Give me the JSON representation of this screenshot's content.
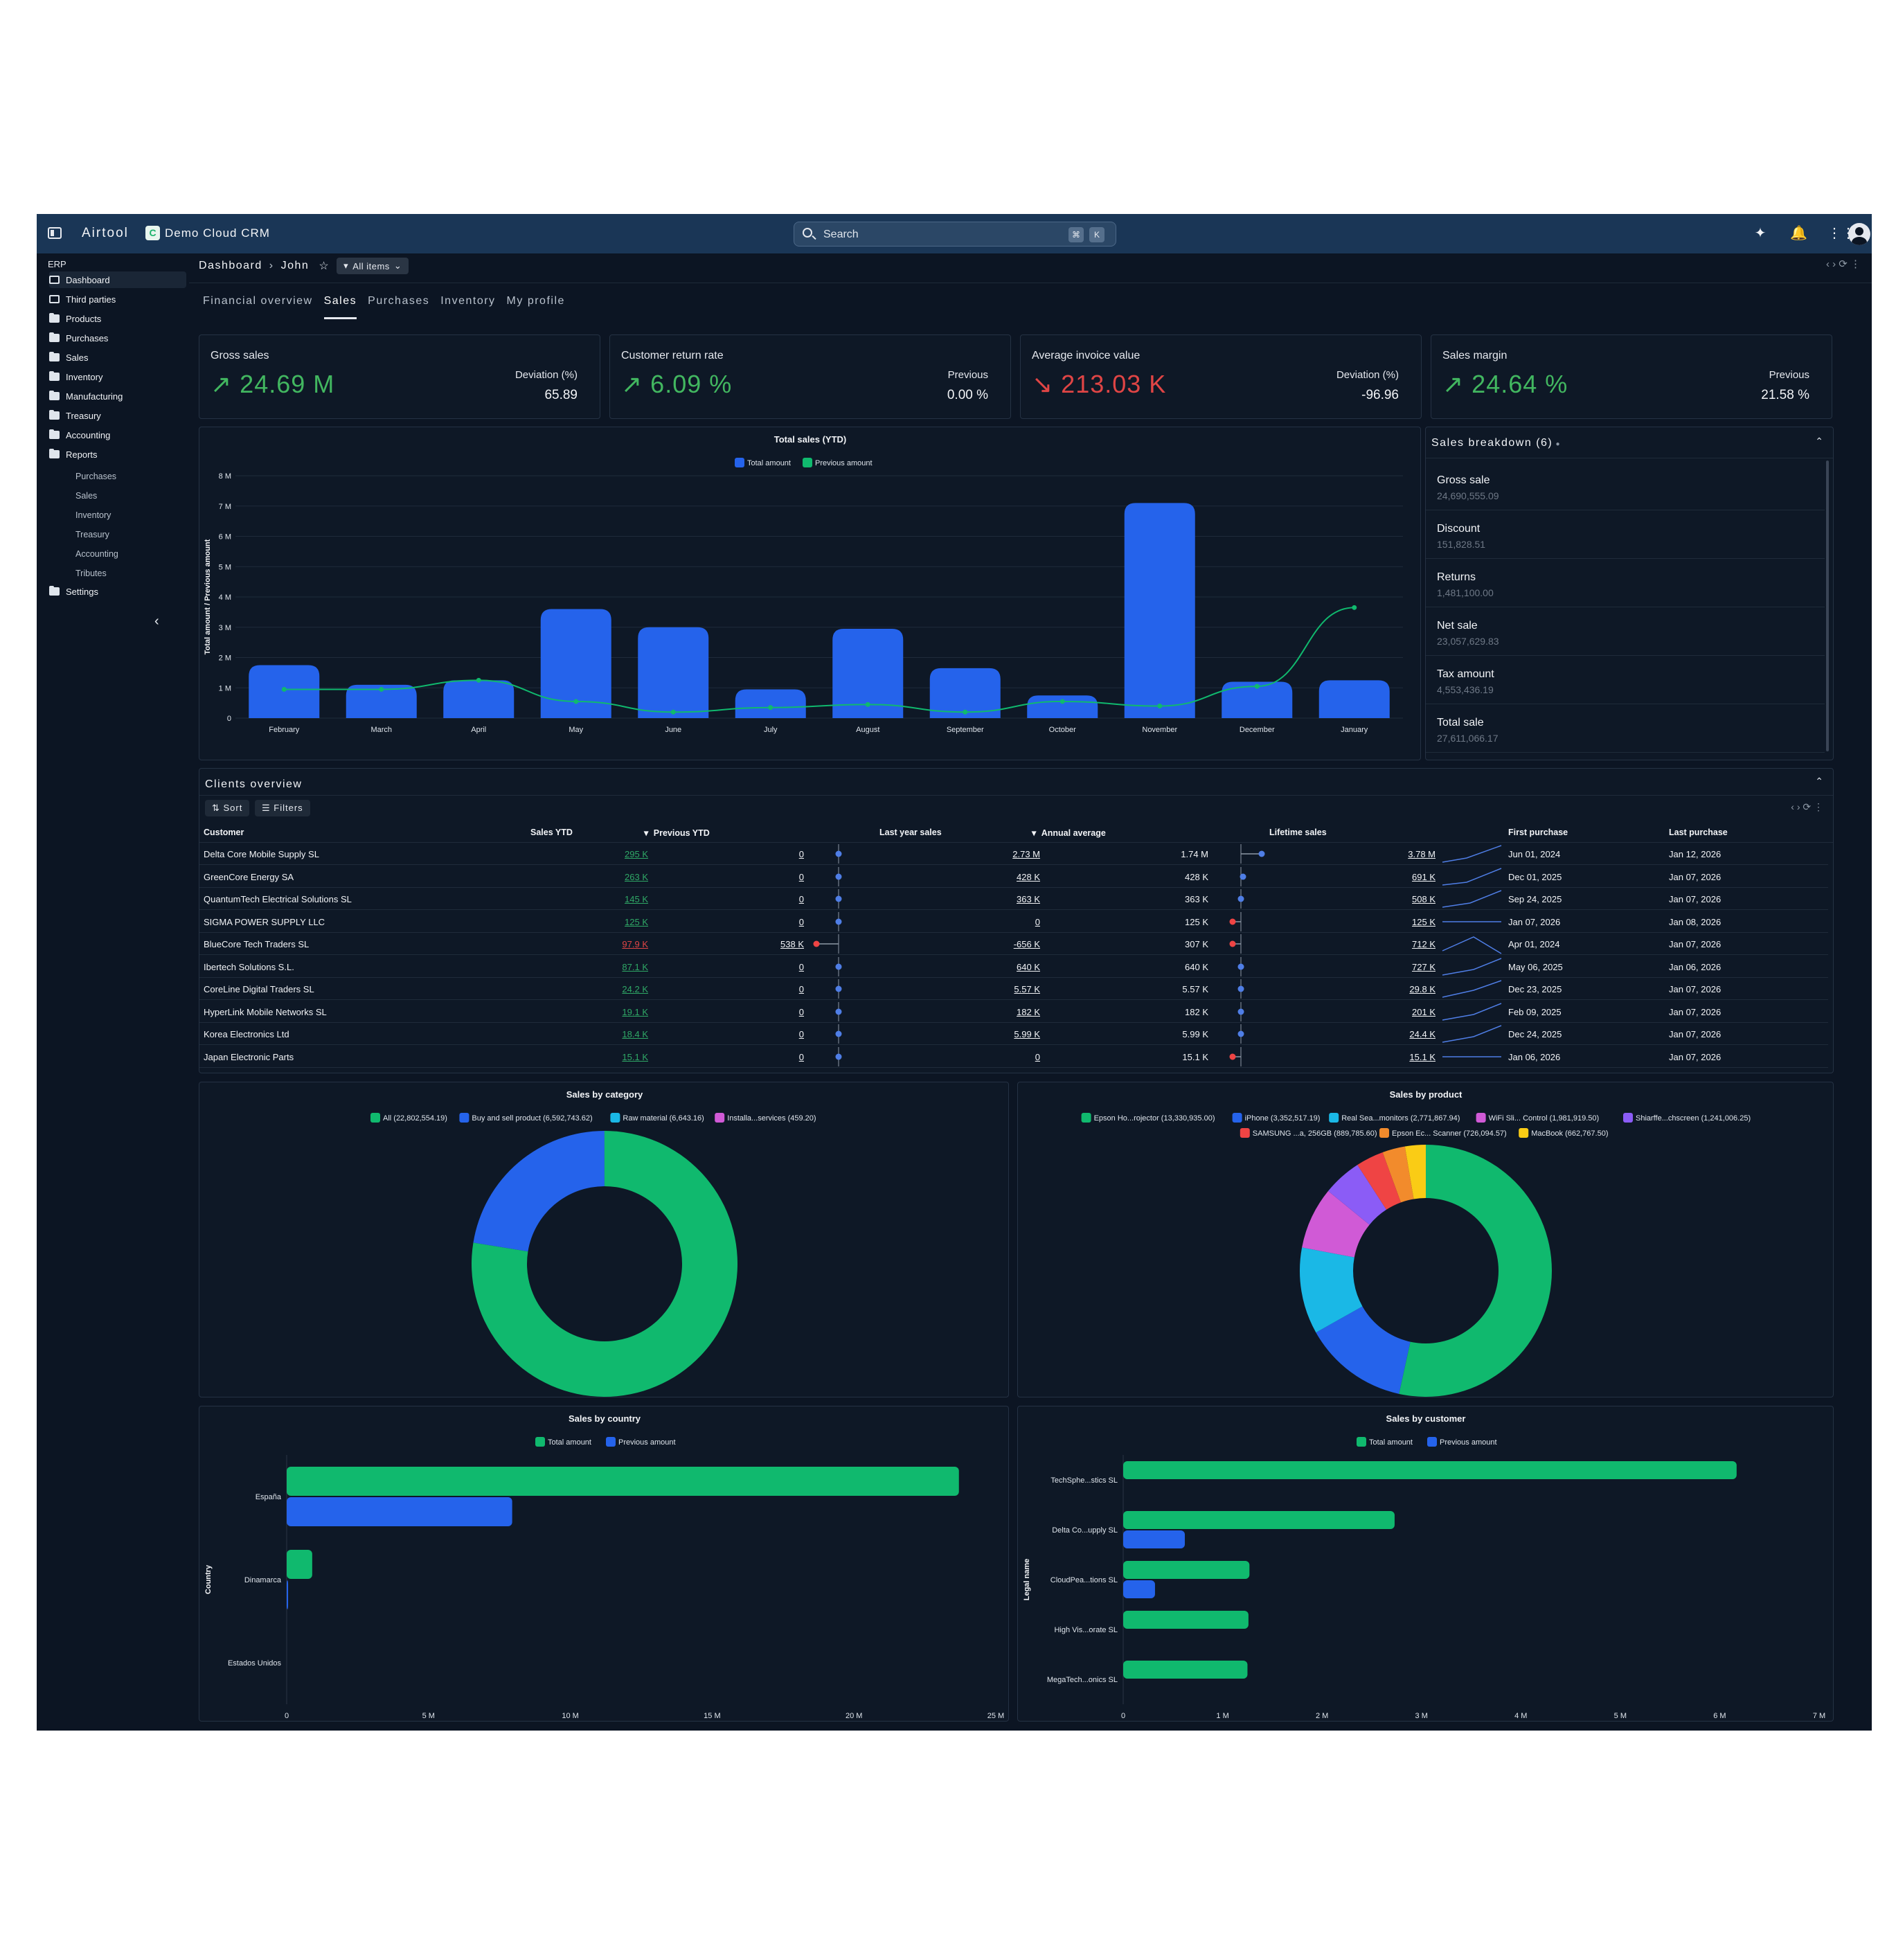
{
  "app": {
    "brand": "Airtool",
    "crm_name": "Demo Cloud CRM",
    "search_placeholder": "Search",
    "search_kbd": [
      "⌘",
      "K"
    ]
  },
  "sidebar": {
    "section": "ERP",
    "items": [
      {
        "label": "Dashboard",
        "icon": "dashboard-icon"
      },
      {
        "label": "Third parties",
        "icon": "person-icon"
      },
      {
        "label": "Products",
        "icon": "folder-icon"
      },
      {
        "label": "Purchases",
        "icon": "folder-icon"
      },
      {
        "label": "Sales",
        "icon": "folder-icon"
      },
      {
        "label": "Inventory",
        "icon": "folder-icon"
      },
      {
        "label": "Manufacturing",
        "icon": "folder-icon"
      },
      {
        "label": "Treasury",
        "icon": "folder-icon"
      },
      {
        "label": "Accounting",
        "icon": "folder-icon"
      },
      {
        "label": "Reports",
        "icon": "folder-icon"
      }
    ],
    "report_subitems": [
      "Purchases",
      "Sales",
      "Inventory",
      "Treasury",
      "Accounting",
      "Tributes"
    ],
    "settings": "Settings"
  },
  "breadcrumb": {
    "root": "Dashboard",
    "current": "John",
    "filter": "All items"
  },
  "tabs": [
    "Financial overview",
    "Sales",
    "Purchases",
    "Inventory",
    "My profile"
  ],
  "kpis": [
    {
      "title": "Gross sales",
      "value": "24.69 M",
      "trend": "up",
      "cmp_label": "Deviation (%)",
      "cmp_value": "65.89"
    },
    {
      "title": "Customer return rate",
      "value": "6.09 %",
      "trend": "up",
      "cmp_label": "Previous",
      "cmp_value": "0.00 %"
    },
    {
      "title": "Average invoice value",
      "value": "213.03 K",
      "trend": "down",
      "cmp_label": "Deviation (%)",
      "cmp_value": "-96.96"
    },
    {
      "title": "Sales margin",
      "value": "24.64 %",
      "trend": "up",
      "cmp_label": "Previous",
      "cmp_value": "21.58 %"
    }
  ],
  "total_sales_chart": {
    "title": "Total sales (YTD)",
    "legend": [
      "Total amount",
      "Previous amount"
    ],
    "ylabel": "Total amount / Previous amount",
    "yticks": [
      "0",
      "1 M",
      "2 M",
      "3 M",
      "4 M",
      "5 M",
      "6 M",
      "7 M",
      "8 M"
    ]
  },
  "breakdown": {
    "title": "Sales breakdown (6)",
    "items": [
      {
        "label": "Gross sale",
        "value": "24,690,555.09"
      },
      {
        "label": "Discount",
        "value": "151,828.51"
      },
      {
        "label": "Returns",
        "value": "1,481,100.00"
      },
      {
        "label": "Net sale",
        "value": "23,057,629.83"
      },
      {
        "label": "Tax amount",
        "value": "4,553,436.19"
      },
      {
        "label": "Total sale",
        "value": "27,611,066.17"
      }
    ]
  },
  "clients": {
    "title": "Clients overview",
    "sort_label": "Sort",
    "filters_label": "Filters",
    "columns": [
      "Customer",
      "Sales YTD",
      "Previous YTD",
      "Last year sales",
      "Annual average",
      "Lifetime sales",
      "First purchase",
      "Last purchase"
    ],
    "rows": [
      {
        "customer": "Delta Core Mobile Supply SL",
        "ytd": "295 K",
        "prev": "0",
        "last_year": "2.73 M",
        "avg": "1.74 M",
        "lifetime": "3.78 M",
        "first": "Jun 01, 2024",
        "last": "Jan 12, 2026",
        "ytd_color": "green"
      },
      {
        "customer": "GreenCore Energy SA",
        "ytd": "263 K",
        "prev": "0",
        "last_year": "428 K",
        "avg": "428 K",
        "lifetime": "691 K",
        "first": "Dec 01, 2025",
        "last": "Jan 07, 2026",
        "ytd_color": "green"
      },
      {
        "customer": "QuantumTech Electrical Solutions SL",
        "ytd": "145 K",
        "prev": "0",
        "last_year": "363 K",
        "avg": "363 K",
        "lifetime": "508 K",
        "first": "Sep 24, 2025",
        "last": "Jan 07, 2026",
        "ytd_color": "green"
      },
      {
        "customer": "SIGMA POWER SUPPLY LLC",
        "ytd": "125 K",
        "prev": "0",
        "last_year": "0",
        "avg": "125 K",
        "lifetime": "125 K",
        "first": "Jan 07, 2026",
        "last": "Jan 08, 2026",
        "ytd_color": "green"
      },
      {
        "customer": "BlueCore Tech Traders SL",
        "ytd": "97.9 K",
        "prev": "538 K",
        "last_year": "-656 K",
        "avg": "307 K",
        "lifetime": "712 K",
        "first": "Apr 01, 2024",
        "last": "Jan 07, 2026",
        "ytd_color": "red"
      },
      {
        "customer": "Ibertech Solutions S.L.",
        "ytd": "87.1 K",
        "prev": "0",
        "last_year": "640 K",
        "avg": "640 K",
        "lifetime": "727 K",
        "first": "May 06, 2025",
        "last": "Jan 06, 2026",
        "ytd_color": "green"
      },
      {
        "customer": "CoreLine Digital Traders SL",
        "ytd": "24.2 K",
        "prev": "0",
        "last_year": "5.57 K",
        "avg": "5.57 K",
        "lifetime": "29.8 K",
        "first": "Dec 23, 2025",
        "last": "Jan 07, 2026",
        "ytd_color": "green"
      },
      {
        "customer": "HyperLink Mobile Networks SL",
        "ytd": "19.1 K",
        "prev": "0",
        "last_year": "182 K",
        "avg": "182 K",
        "lifetime": "201 K",
        "first": "Feb 09, 2025",
        "last": "Jan 07, 2026",
        "ytd_color": "green"
      },
      {
        "customer": "Korea Electronics Ltd",
        "ytd": "18.4 K",
        "prev": "0",
        "last_year": "5.99 K",
        "avg": "5.99 K",
        "lifetime": "24.4 K",
        "first": "Dec 24, 2025",
        "last": "Jan 07, 2026",
        "ytd_color": "green"
      },
      {
        "customer": "Japan Electronic Parts",
        "ytd": "15.1 K",
        "prev": "0",
        "last_year": "0",
        "avg": "15.1 K",
        "lifetime": "15.1 K",
        "first": "Jan 06, 2026",
        "last": "Jan 07, 2026",
        "ytd_color": "green"
      }
    ]
  },
  "colors": {
    "blue": "#2563eb",
    "green": "#10b96e",
    "cyan": "#1ab8e6",
    "magenta": "#d05ad6",
    "purple": "#8b5cf6",
    "red": "#ef4444",
    "orange": "#f28b2c",
    "yellow": "#facc15"
  },
  "chart_data": [
    {
      "type": "bar",
      "title": "Total sales (YTD)",
      "categories": [
        "February",
        "March",
        "April",
        "May",
        "June",
        "July",
        "August",
        "September",
        "October",
        "November",
        "December",
        "January"
      ],
      "series": [
        {
          "name": "Total amount",
          "kind": "bar",
          "values": [
            1.75,
            1.1,
            1.25,
            3.6,
            3.0,
            0.95,
            2.95,
            1.65,
            0.75,
            7.1,
            1.2,
            1.25
          ]
        },
        {
          "name": "Previous amount",
          "kind": "line",
          "values": [
            0.95,
            0.95,
            1.25,
            0.55,
            0.2,
            0.35,
            0.45,
            0.2,
            0.55,
            0.4,
            1.05,
            3.65
          ]
        }
      ],
      "xlabel": "",
      "ylabel": "Total amount / Previous amount",
      "ylim": [
        0,
        8
      ],
      "unit": "M"
    },
    {
      "type": "pie",
      "title": "Sales by category",
      "labels": [
        "All (22,802,554.19)",
        "Buy and sell product (6,592,743.62)",
        "Raw material (6,643.16)",
        "Installa...services (459.20)"
      ],
      "values": [
        22802554.19,
        6592743.62,
        6643.16,
        459.2
      ],
      "colors": [
        "#10b96e",
        "#2563eb",
        "#1ab8e6",
        "#d05ad6"
      ]
    },
    {
      "type": "pie",
      "title": "Sales by product",
      "labels": [
        "Epson Ho...rojector (13,330,935.00)",
        "iPhone (3,352,517.19)",
        "Real Sea...monitors (2,771,867.94)",
        "WiFi Sli... Control (1,981,919.50)",
        "Shiarffe...chscreen (1,241,006.25)",
        "SAMSUNG ...a, 256GB (889,785.60)",
        "Epson Ec... Scanner (726,094.57)",
        "MacBook (662,767.50)"
      ],
      "values": [
        13330935.0,
        3352517.19,
        2771867.94,
        1981919.5,
        1241006.25,
        889785.6,
        726094.57,
        662767.5
      ],
      "colors": [
        "#10b96e",
        "#2563eb",
        "#1ab8e6",
        "#d05ad6",
        "#8b5cf6",
        "#ef4444",
        "#f28b2c",
        "#facc15"
      ]
    },
    {
      "type": "bar",
      "orientation": "horizontal",
      "title": "Sales by country",
      "categories": [
        "España",
        "Dinamarca",
        "Estados Unidos"
      ],
      "series": [
        {
          "name": "Total amount",
          "values": [
            23.7,
            0.9,
            0.0
          ]
        },
        {
          "name": "Previous amount",
          "values": [
            7.95,
            0.05,
            0.0
          ]
        }
      ],
      "ylabel": "Country",
      "xlim": [
        0,
        25
      ],
      "unit": "M",
      "xticks": [
        "0",
        "5 M",
        "10 M",
        "15 M",
        "20 M",
        "25 M"
      ]
    },
    {
      "type": "bar",
      "orientation": "horizontal",
      "title": "Sales by customer",
      "categories": [
        "TechSphe...stics SL",
        "Delta Co...upply SL",
        "CloudPea...tions SL",
        "High Vis...orate SL",
        "MegaTech...onics SL"
      ],
      "series": [
        {
          "name": "Total amount",
          "values": [
            6.17,
            2.73,
            1.27,
            1.26,
            1.25
          ]
        },
        {
          "name": "Previous amount",
          "values": [
            0.0,
            0.62,
            0.32,
            0.0,
            0.0
          ]
        }
      ],
      "ylabel": "Legal name",
      "xlim": [
        0,
        7
      ],
      "unit": "M",
      "xticks": [
        "0",
        "1 M",
        "2 M",
        "3 M",
        "4 M",
        "5 M",
        "6 M",
        "7 M"
      ]
    }
  ]
}
